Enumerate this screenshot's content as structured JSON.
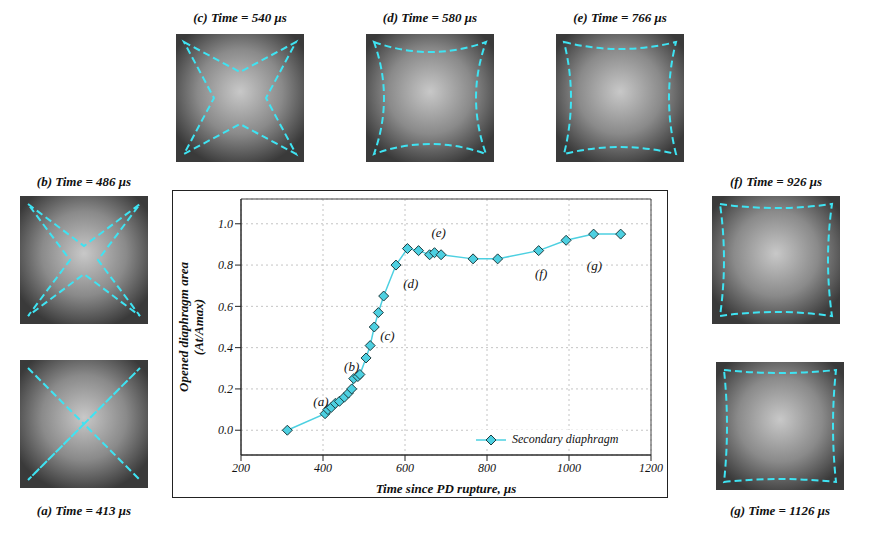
{
  "chart_data": {
    "type": "line",
    "xlabel": "Time since PD rupture, μs",
    "ylabel": "Opened diaphragm area (At/Amax)",
    "x": [
      313,
      405,
      412,
      420,
      430,
      440,
      452,
      462,
      470,
      475,
      485,
      490,
      505,
      515,
      525,
      535,
      548,
      578,
      606,
      633,
      660,
      672,
      688,
      766,
      826,
      926,
      993,
      1060,
      1126
    ],
    "series": [
      {
        "name": "Secondary diaphragm",
        "color": "#4dd0e1",
        "marker": "diamond",
        "line_style": "solid",
        "values": [
          0.0,
          0.08,
          0.1,
          0.11,
          0.13,
          0.14,
          0.16,
          0.18,
          0.2,
          0.25,
          0.26,
          0.27,
          0.35,
          0.41,
          0.5,
          0.57,
          0.65,
          0.8,
          0.88,
          0.87,
          0.85,
          0.86,
          0.85,
          0.83,
          0.83,
          0.87,
          0.92,
          0.95,
          0.95
        ]
      }
    ],
    "xlim": [
      200,
      1200
    ],
    "xticks": [
      200,
      400,
      600,
      800,
      1000,
      1200
    ],
    "ylim": [
      -0.12,
      1.12
    ],
    "yticks": [
      {
        "value": 0,
        "label": "0.0"
      },
      0.2,
      0.4,
      0.6,
      0.8,
      {
        "value": 1,
        "label": "1.0"
      }
    ],
    "grid": true,
    "legend": "lower right",
    "annotations": [
      {
        "text": "(a)",
        "x": 395,
        "y": 0.14
      },
      {
        "text": "(b)",
        "x": 470,
        "y": 0.31
      },
      {
        "text": "(c)",
        "x": 557,
        "y": 0.46
      },
      {
        "text": "(d)",
        "x": 614,
        "y": 0.71
      },
      {
        "text": "(e)",
        "x": 682,
        "y": 0.96
      },
      {
        "text": "(f)",
        "x": 932,
        "y": 0.76
      },
      {
        "text": "(g)",
        "x": 1062,
        "y": 0.8
      }
    ]
  },
  "panels": [
    {
      "caption": "(a) Time = 413 μs"
    },
    {
      "caption": "(b) Time = 486 μs"
    },
    {
      "caption": "(c) Time = 540 μs"
    },
    {
      "caption": "(d) Time = 580 μs"
    },
    {
      "caption": "(e) Time = 766 μs"
    },
    {
      "caption": "(f) Time = 926 μs"
    },
    {
      "caption": "(g) Time = 1126 μs"
    }
  ]
}
